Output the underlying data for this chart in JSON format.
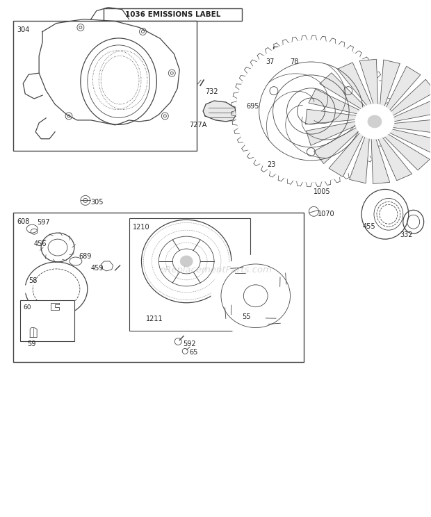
{
  "title": "1036 EMISSIONS LABEL",
  "bg_color": "#ffffff",
  "line_color": "#444444",
  "label_color": "#222222",
  "watermark": "eReplacementParts.com",
  "fig_w": 6.2,
  "fig_h": 7.44,
  "dpi": 100
}
